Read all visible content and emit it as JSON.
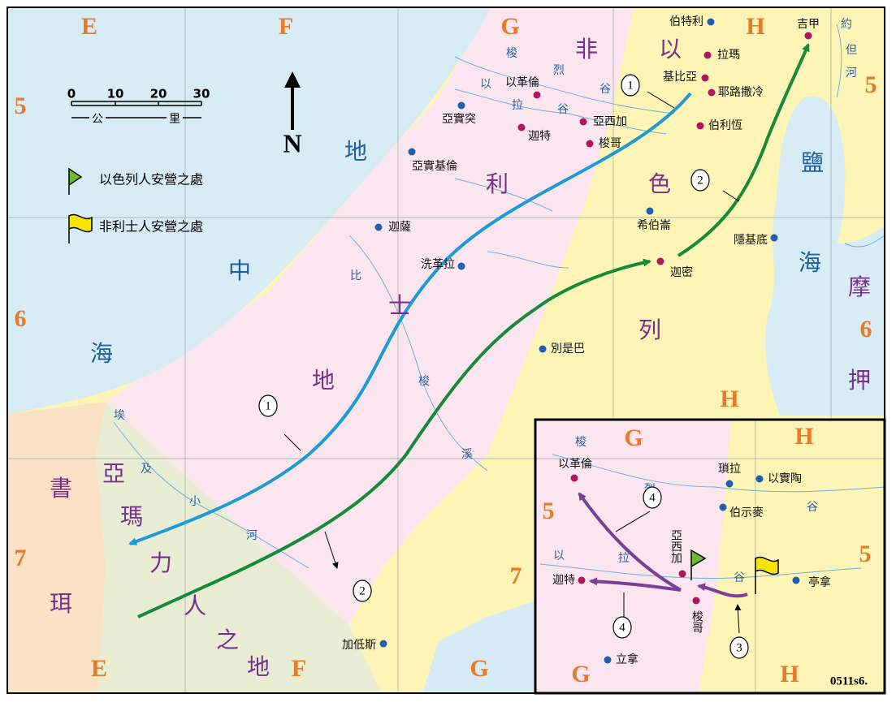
{
  "main_map": {
    "grid_columns_top": [
      "E",
      "F",
      "G",
      "H"
    ],
    "grid_columns_bottom": [
      "E",
      "F",
      "G",
      "H"
    ],
    "grid_rows_left": [
      "5",
      "6",
      "7"
    ],
    "grid_rows_right": [
      "5",
      "6",
      "7"
    ],
    "scale": {
      "ticks": [
        0,
        10,
        20,
        30
      ],
      "unit": [
        "公",
        "里"
      ]
    },
    "north": "N",
    "legend": [
      "以色列人安營之處",
      "非利士人安營之處"
    ],
    "seas": [
      [
        "地",
        "中",
        "海"
      ],
      [
        "鹽",
        "海"
      ]
    ],
    "regions": [
      [
        "非",
        "利",
        "士",
        "地"
      ],
      [
        "以",
        "色",
        "列"
      ],
      [
        "亞",
        "瑪",
        "力",
        "人",
        "之",
        "地"
      ],
      [
        "書",
        "珥"
      ],
      [
        "摩",
        "押"
      ]
    ],
    "rivers": [
      [
        "梭",
        "烈",
        "谷"
      ],
      [
        "以",
        "拉",
        "谷"
      ],
      [
        "比",
        "梭",
        "溪"
      ],
      [
        "埃",
        "及",
        "小",
        "河"
      ],
      [
        "約",
        "但",
        "河"
      ]
    ],
    "routes": [
      "1",
      "2"
    ],
    "cities": [
      {
        "name": "伯特利",
        "color": "#1f5fb0"
      },
      {
        "name": "吉甲",
        "color": "#b0155e"
      },
      {
        "name": "拉瑪",
        "color": "#b0155e"
      },
      {
        "name": "基比亞",
        "color": "#b0155e"
      },
      {
        "name": "耶路撒冷",
        "color": "#b0155e"
      },
      {
        "name": "伯利恆",
        "color": "#b0155e"
      },
      {
        "name": "以革倫",
        "color": "#b0155e"
      },
      {
        "name": "亞實突",
        "color": "#1f5fb0"
      },
      {
        "name": "亞西加",
        "color": "#b0155e"
      },
      {
        "name": "迦特",
        "color": "#b0155e"
      },
      {
        "name": "梭哥",
        "color": "#b0155e"
      },
      {
        "name": "亞實基倫",
        "color": "#1f5fb0"
      },
      {
        "name": "迦薩",
        "color": "#1f5fb0"
      },
      {
        "name": "希伯崙",
        "color": "#1f5fb0"
      },
      {
        "name": "隱基底",
        "color": "#1f5fb0"
      },
      {
        "name": "洗革拉",
        "color": "#1f5fb0"
      },
      {
        "name": "迦密",
        "color": "#b0155e"
      },
      {
        "name": "別是巴",
        "color": "#1f5fb0"
      },
      {
        "name": "加低斯",
        "color": "#1f5fb0"
      }
    ]
  },
  "inset_map": {
    "grid_columns_top": [
      "G",
      "H"
    ],
    "grid_columns_bottom": [
      "G",
      "H"
    ],
    "grid_rows_left": [
      "5"
    ],
    "grid_rows_right": [
      "5"
    ],
    "rivers": [
      [
        "梭",
        "烈",
        "谷"
      ],
      [
        "以",
        "拉",
        "谷"
      ]
    ],
    "routes": [
      "3",
      "4"
    ],
    "cities": [
      {
        "name": "以革倫",
        "color": "#b0155e"
      },
      {
        "name": "瑣拉",
        "color": "#1f5fb0"
      },
      {
        "name": "以實陶",
        "color": "#1f5fb0"
      },
      {
        "name": "伯示麥",
        "color": "#1f5fb0"
      },
      {
        "name": "亞西加",
        "color": "#b0155e"
      },
      {
        "name": "迦特",
        "color": "#b0155e"
      },
      {
        "name": "梭哥",
        "color": "#b0155e"
      },
      {
        "name": "亭拿",
        "color": "#1f5fb0"
      },
      {
        "name": "立拿",
        "color": "#1f5fb0"
      }
    ]
  },
  "map_code": "0511s6."
}
